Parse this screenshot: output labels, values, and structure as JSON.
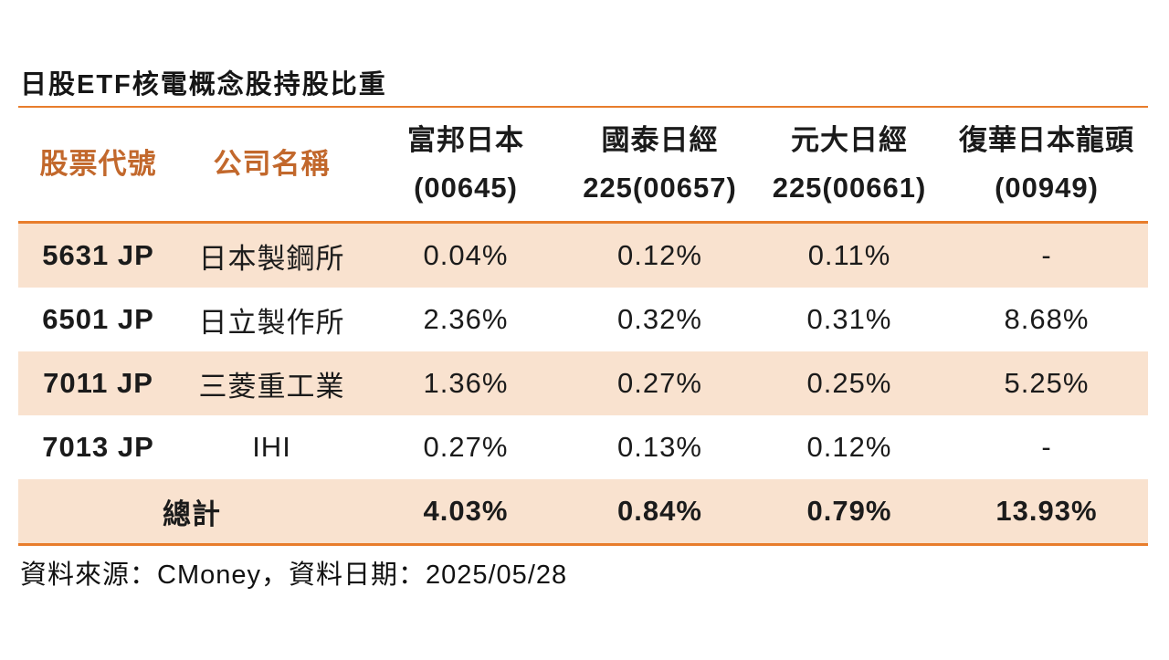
{
  "title": "日股ETF核電概念股持股比重",
  "colors": {
    "accent_line": "#E87D2C",
    "header_key_text": "#C2682C",
    "stripe_bg": "#F9E2CF",
    "body_text": "#1b1b1b"
  },
  "table": {
    "headers": [
      {
        "line1": "股票代號",
        "line2": ""
      },
      {
        "line1": "公司名稱",
        "line2": ""
      },
      {
        "line1": "富邦日本",
        "line2": "(00645)"
      },
      {
        "line1": "國泰日經",
        "line2": "225(00657)"
      },
      {
        "line1": "元大日經",
        "line2": "225(00661)"
      },
      {
        "line1": "復華日本龍頭",
        "line2": "(00949)"
      }
    ],
    "rows": [
      {
        "code": "5631 JP",
        "company": "日本製鋼所",
        "values": [
          "0.04%",
          "0.12%",
          "0.11%",
          "-"
        ]
      },
      {
        "code": "6501 JP",
        "company": "日立製作所",
        "values": [
          "2.36%",
          "0.32%",
          "0.31%",
          "8.68%"
        ]
      },
      {
        "code": "7011 JP",
        "company": "三菱重工業",
        "values": [
          "1.36%",
          "0.27%",
          "0.25%",
          "5.25%"
        ]
      },
      {
        "code": "7013 JP",
        "company": "IHI",
        "values": [
          "0.27%",
          "0.13%",
          "0.12%",
          "-"
        ]
      }
    ],
    "total": {
      "label": "總計",
      "values": [
        "4.03%",
        "0.84%",
        "0.79%",
        "13.93%"
      ]
    }
  },
  "footer": {
    "source_note": "資料來源：CMoney，資料日期：2025/05/28"
  },
  "chart_data": {
    "type": "table",
    "title": "日股ETF核電概念股持股比重",
    "columns": [
      "股票代號",
      "公司名稱",
      "富邦日本(00645)",
      "國泰日經225(00657)",
      "元大日經225(00661)",
      "復華日本龍頭(00949)"
    ],
    "rows": [
      [
        "5631 JP",
        "日本製鋼所",
        "0.04%",
        "0.12%",
        "0.11%",
        "-"
      ],
      [
        "6501 JP",
        "日立製作所",
        "2.36%",
        "0.32%",
        "0.31%",
        "8.68%"
      ],
      [
        "7011 JP",
        "三菱重工業",
        "1.36%",
        "0.27%",
        "0.25%",
        "5.25%"
      ],
      [
        "7013 JP",
        "IHI",
        "0.27%",
        "0.13%",
        "0.12%",
        "-"
      ],
      [
        "總計",
        "",
        "4.03%",
        "0.84%",
        "0.79%",
        "13.93%"
      ]
    ],
    "totals": {
      "富邦日本(00645)": "4.03%",
      "國泰日經225(00657)": "0.84%",
      "元大日經225(00661)": "0.79%",
      "復華日本龍頭(00949)": "13.93%"
    },
    "source": "CMoney",
    "data_date": "2025/05/28"
  }
}
